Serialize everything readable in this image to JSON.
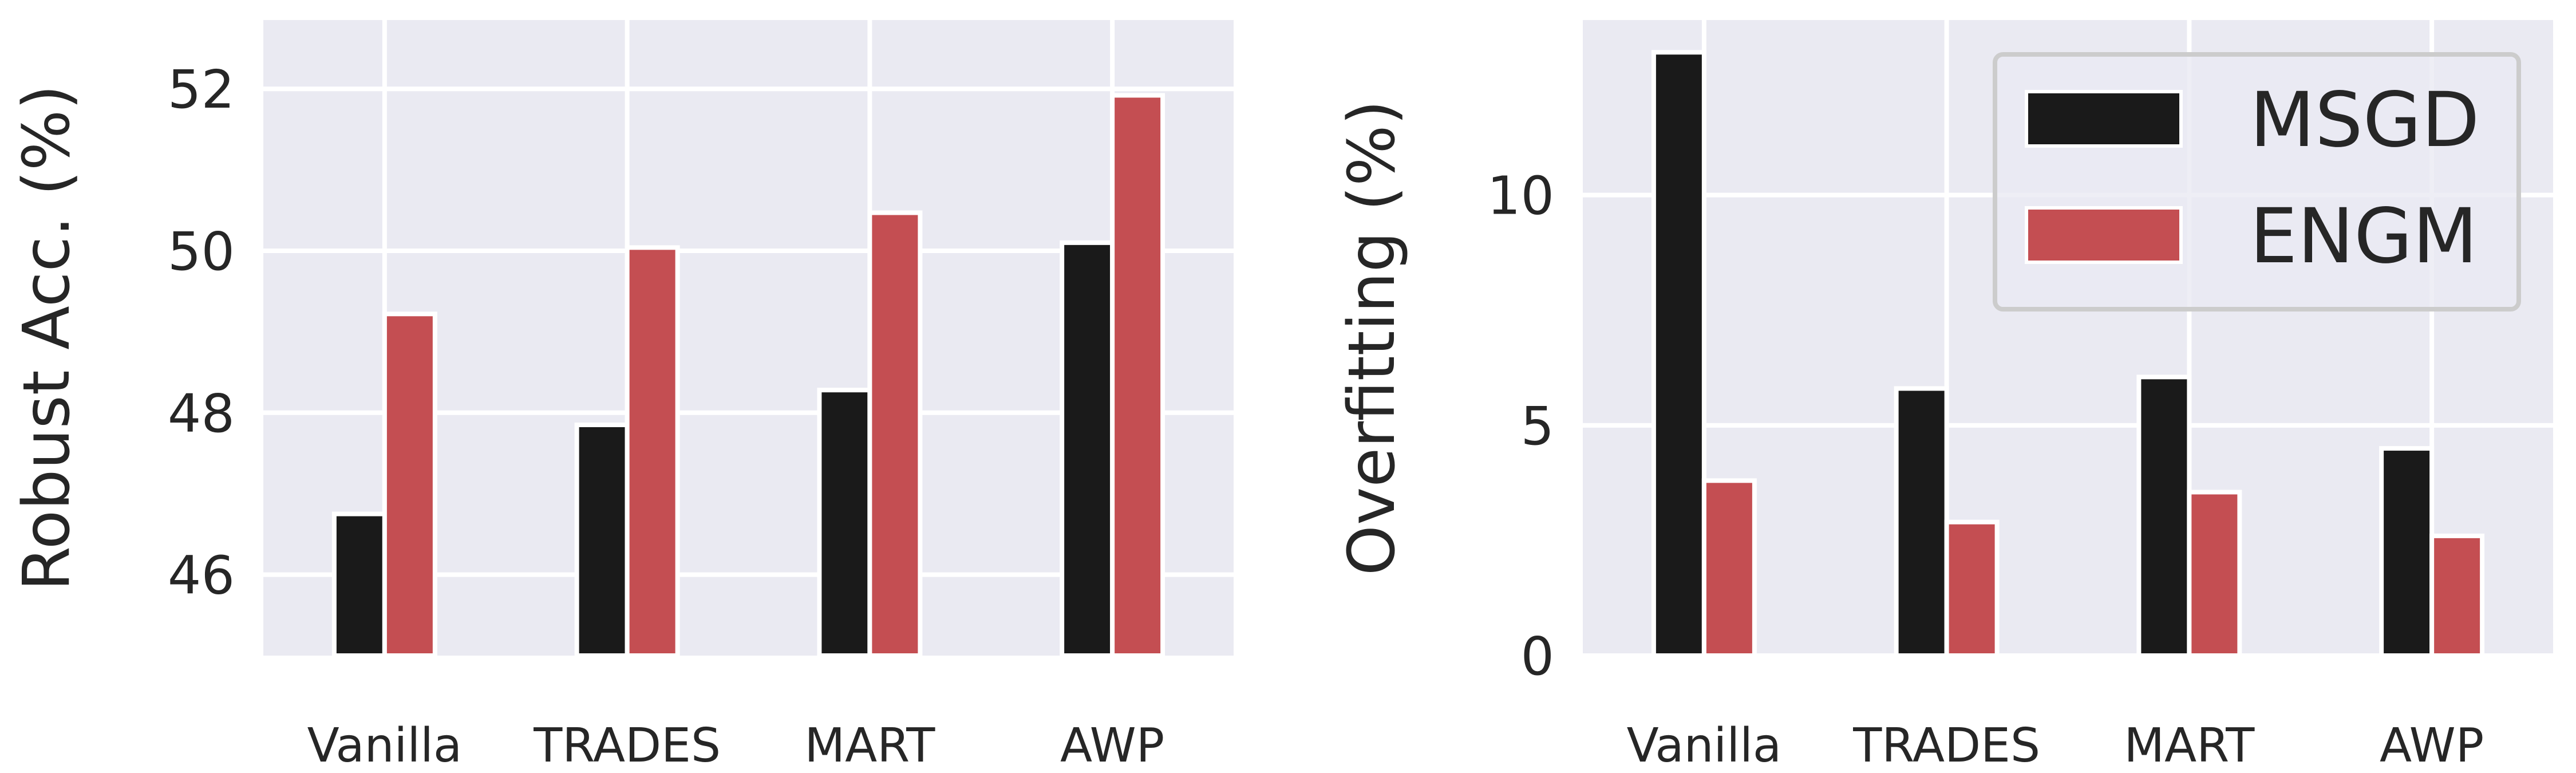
{
  "chart_data": [
    {
      "type": "bar",
      "categories": [
        "Vanilla",
        "TRADES",
        "MART",
        "AWP"
      ],
      "series": [
        {
          "name": "MSGD",
          "values": [
            46.75,
            47.85,
            48.28,
            50.1
          ]
        },
        {
          "name": "ENGM",
          "values": [
            49.22,
            50.04,
            50.47,
            51.92
          ]
        }
      ],
      "xlabel": "",
      "ylabel": "Robust Acc. (%)",
      "ylim": [
        45.0,
        52.85
      ],
      "yticks": [
        "46",
        "48",
        "50",
        "52"
      ],
      "grid": true,
      "legend": "none"
    },
    {
      "type": "bar",
      "categories": [
        "Vanilla",
        "TRADES",
        "MART",
        "AWP"
      ],
      "series": [
        {
          "name": "MSGD",
          "values": [
            13.1,
            5.8,
            6.05,
            4.5
          ]
        },
        {
          "name": "ENGM",
          "values": [
            3.8,
            2.9,
            3.55,
            2.6
          ]
        }
      ],
      "xlabel": "",
      "ylabel": "Overfitting (%)",
      "ylim": [
        0,
        13.8
      ],
      "yticks": [
        "0",
        "5",
        "10"
      ],
      "grid": true,
      "legend": "top-right"
    }
  ],
  "colors": {
    "MSGD": "#1a1a1a",
    "ENGM": "#c44e52",
    "plot_background": "#eaeaf2",
    "grid": "#ffffff",
    "text": "#262626"
  }
}
